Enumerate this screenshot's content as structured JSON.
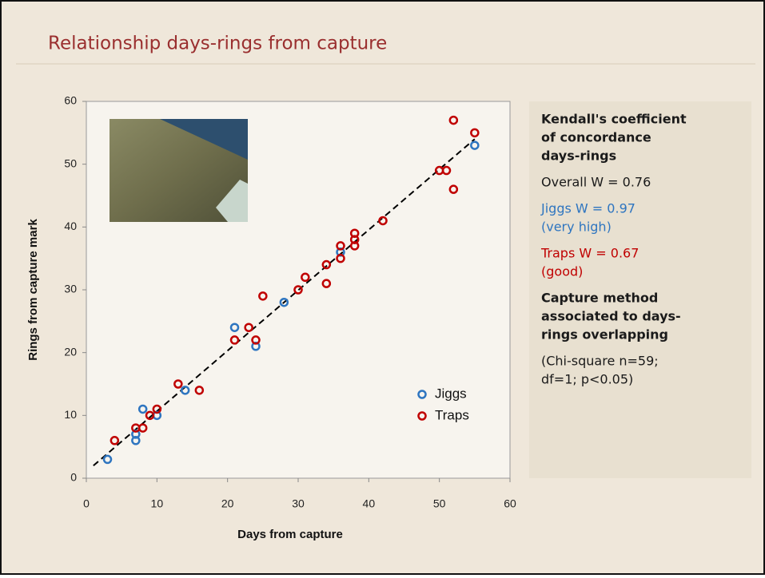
{
  "chart_data": {
    "type": "scatter",
    "title": "Relationship days-rings from capture",
    "xlabel": "Days from capture",
    "ylabel": "Rings from capture mark",
    "xlim": [
      0,
      60
    ],
    "xticks": [
      0,
      10,
      20,
      30,
      40,
      50,
      60
    ],
    "ylim": [
      0,
      60
    ],
    "yticks": [
      0,
      10,
      20,
      30,
      40,
      50,
      60
    ],
    "legend": "lower right",
    "series": [
      {
        "name": "Jiggs",
        "color": "#2e75c0",
        "x": [
          3,
          7,
          7,
          8,
          10,
          14,
          21,
          24,
          28,
          36,
          55
        ],
        "values": [
          3,
          6,
          7,
          11,
          10,
          14,
          24,
          21,
          28,
          36,
          53
        ]
      },
      {
        "name": "Traps",
        "color": "#c00000",
        "x": [
          4,
          7,
          8,
          9,
          10,
          13,
          16,
          21,
          23,
          24,
          25,
          30,
          31,
          34,
          34,
          36,
          36,
          38,
          38,
          38,
          42,
          50,
          51,
          52,
          52,
          55
        ],
        "values": [
          6,
          8,
          8,
          10,
          11,
          15,
          14,
          22,
          24,
          22,
          29,
          30,
          32,
          31,
          34,
          35,
          37,
          37,
          38,
          39,
          41,
          49,
          49,
          46,
          57,
          55
        ]
      }
    ],
    "trendline": {
      "color": "#000000",
      "x": [
        1,
        55
      ],
      "values": [
        2,
        54
      ]
    },
    "panel": [
      {
        "color": "#1a1a1a",
        "bold": true,
        "lines": [
          "Kendall's coefficient",
          "of concordance",
          "days-rings"
        ]
      },
      {
        "color": "#1a1a1a",
        "bold": false,
        "lines": [
          "Overall W = 0.76"
        ]
      },
      {
        "color": "#2e75c0",
        "bold": false,
        "lines": [
          "Jiggs  W = 0.97",
          "(very high)"
        ]
      },
      {
        "color": "#c00000",
        "bold": false,
        "lines": [
          "Traps W = 0.67",
          "(good)"
        ]
      },
      {
        "color": "#1a1a1a",
        "bold": true,
        "lines": [
          "Capture method",
          "associated to days-",
          "rings overlapping"
        ]
      },
      {
        "color": "#1a1a1a",
        "bold": false,
        "lines": [
          "(Chi-square n=59;",
          "df=1; p<0.05)"
        ]
      }
    ]
  }
}
